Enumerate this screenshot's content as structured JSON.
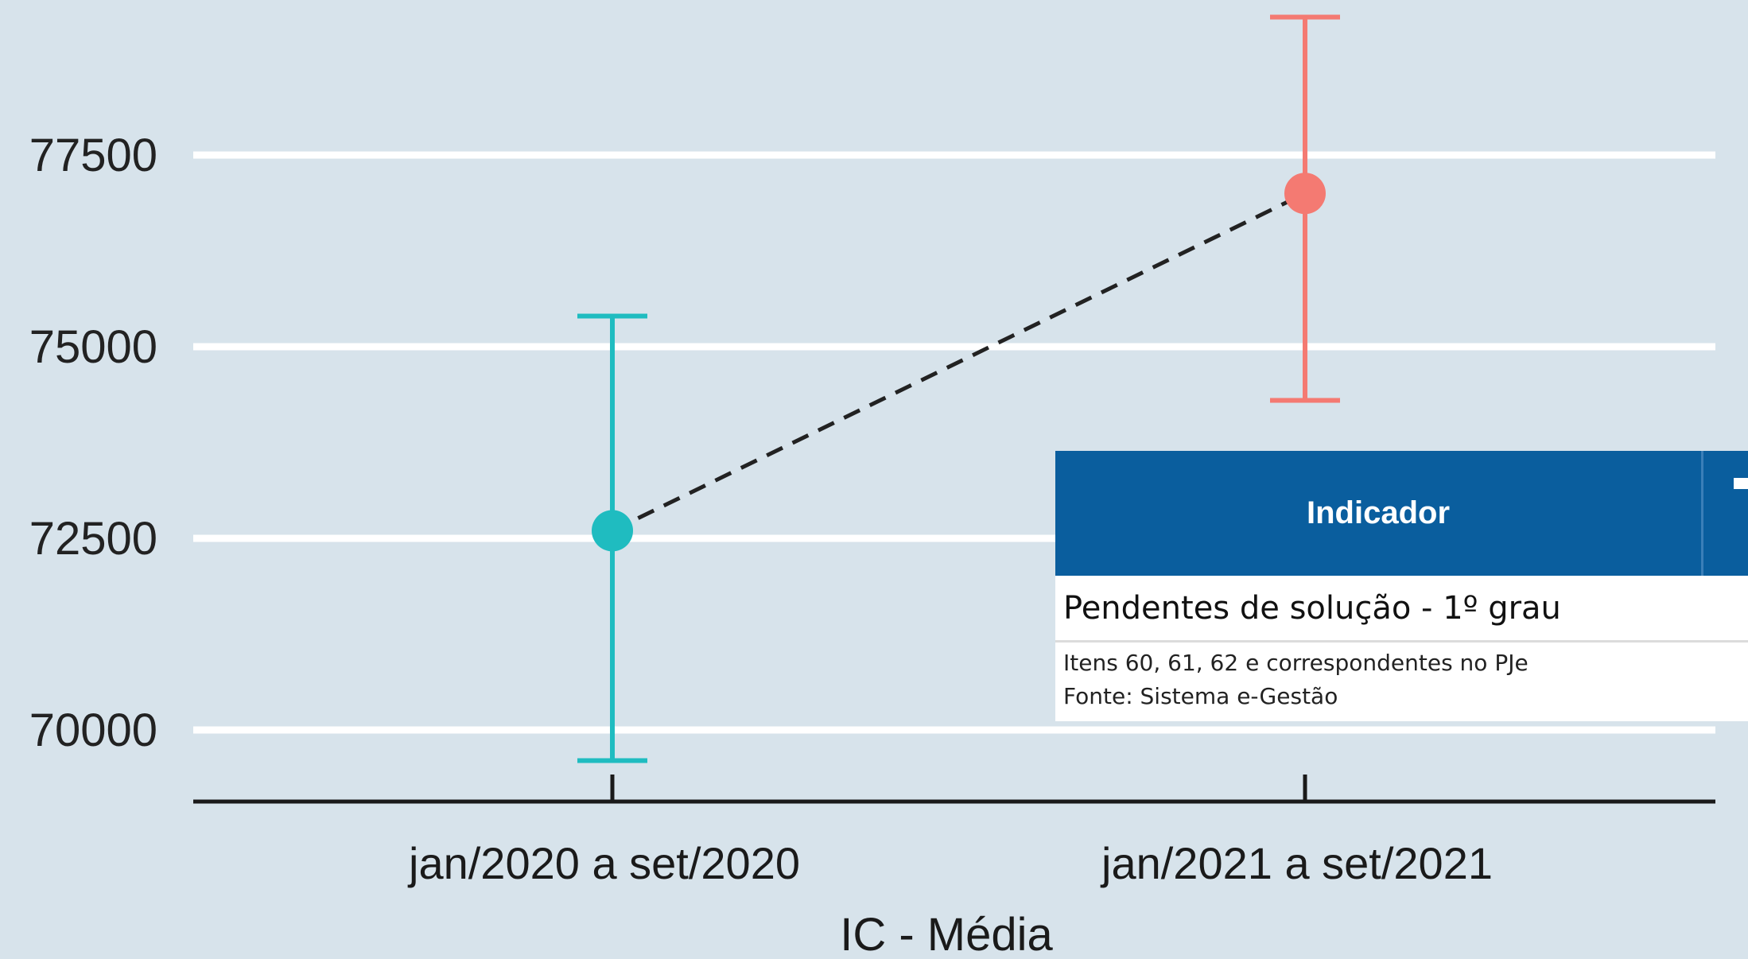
{
  "chart_data": {
    "type": "errorbar",
    "categories": [
      "jan/2020 a set/2020",
      "jan/2021 a set/2021"
    ],
    "points": [
      {
        "category": "jan/2020 a set/2020",
        "mean": 72600,
        "lower": 69600,
        "upper": 75400,
        "color": "#1fbcc0"
      },
      {
        "category": "jan/2021 a set/2021",
        "mean": 77000,
        "lower": 74300,
        "upper": 79300,
        "color": "#f47a72"
      }
    ],
    "connector": "dashed",
    "yticks": [
      70000,
      72500,
      75000,
      77500
    ],
    "ylim": [
      69000,
      79400
    ],
    "xlabel": "IC - Média",
    "ylabel": "",
    "grid": true,
    "background": "#d7e3eb"
  },
  "overlay": {
    "header": "Indicador",
    "title": "Pendentes de solução - 1º grau",
    "note_line1": "Itens 60, 61, 62 e correspondentes no PJe",
    "note_line2": "Fonte: Sistema e-Gestão"
  }
}
